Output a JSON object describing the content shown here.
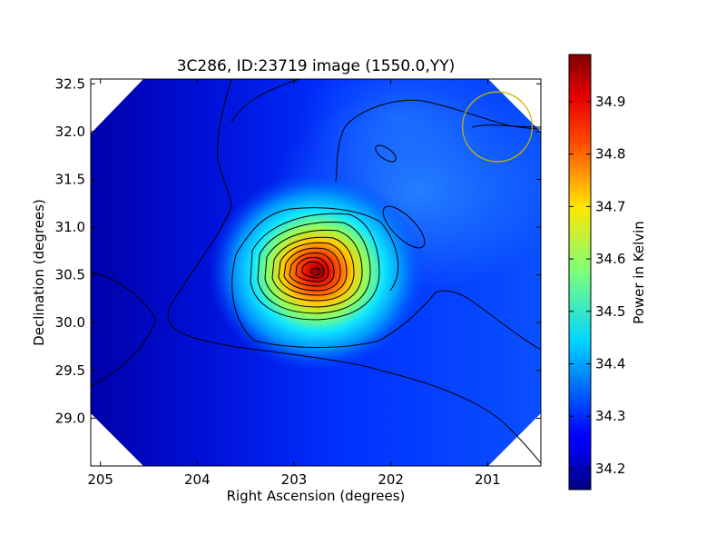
{
  "chart_data": {
    "type": "heatmap",
    "title": "3C286, ID:23719 image (1550.0,YY)",
    "xlabel": "Right Ascension (degrees)",
    "ylabel": "Declination (degrees)",
    "xlim": [
      205.1,
      200.45
    ],
    "ylim": [
      28.5,
      32.55
    ],
    "x_ticks": [
      205,
      204,
      203,
      202,
      201
    ],
    "y_ticks": [
      29.0,
      29.5,
      30.0,
      30.5,
      31.0,
      31.5,
      32.0,
      32.5
    ],
    "x_tick_labels": [
      "205",
      "204",
      "203",
      "202",
      "201"
    ],
    "y_tick_labels": [
      "29.0",
      "29.5",
      "30.0",
      "30.5",
      "31.0",
      "31.5",
      "32.0",
      "32.5"
    ],
    "colormap": "jet",
    "peak": {
      "ra": 202.75,
      "dec": 30.5,
      "value": 34.98
    },
    "background_level": 34.16,
    "colorbar": {
      "label": "Power in Kelvin",
      "range": [
        34.16,
        34.99
      ],
      "ticks": [
        34.2,
        34.3,
        34.4,
        34.5,
        34.6,
        34.7,
        34.8,
        34.9
      ],
      "tick_labels": [
        "34.2",
        "34.3",
        "34.4",
        "34.5",
        "34.6",
        "34.7",
        "34.8",
        "34.9"
      ]
    },
    "beam_circle": {
      "ra": 200.9,
      "dec": 32.05,
      "radius_deg": 0.36,
      "color": "#c8b400"
    },
    "contour_count": 12,
    "grid": false
  }
}
